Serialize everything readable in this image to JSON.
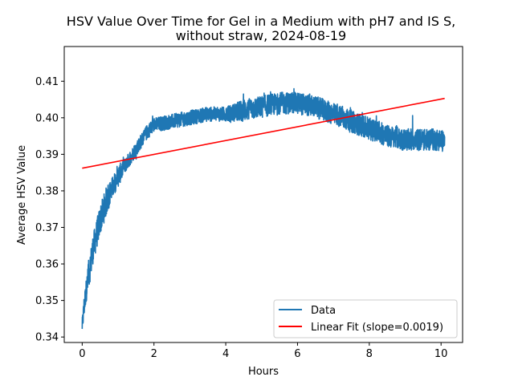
{
  "chart_data": {
    "type": "line",
    "title": "HSV Value Over Time for Gel in a Medium with pH7 and IS S,",
    "subtitle": "without straw, 2024-08-19",
    "xlabel": "Hours",
    "ylabel": "Average HSV Value",
    "xlim": [
      -0.5,
      10.6
    ],
    "ylim": [
      0.3385,
      0.4195
    ],
    "xticks": [
      0,
      2,
      4,
      6,
      8,
      10
    ],
    "yticks": [
      0.34,
      0.35,
      0.36,
      0.37,
      0.38,
      0.39,
      0.4,
      0.41
    ],
    "legend_position": "bottom-right",
    "grid": false,
    "series": [
      {
        "name": "Data",
        "color": "#1f77b4",
        "kind": "noisy-line",
        "x": [
          0.0,
          0.05,
          0.1,
          0.2,
          0.3,
          0.4,
          0.5,
          0.6,
          0.7,
          0.8,
          0.9,
          1.0,
          1.2,
          1.4,
          1.6,
          1.8,
          2.0,
          2.5,
          3.0,
          3.5,
          4.0,
          4.5,
          5.0,
          5.5,
          6.0,
          6.5,
          7.0,
          7.5,
          8.0,
          8.5,
          9.0,
          9.5,
          10.0,
          10.1
        ],
        "y": [
          0.343,
          0.348,
          0.352,
          0.358,
          0.364,
          0.368,
          0.372,
          0.375,
          0.378,
          0.38,
          0.382,
          0.384,
          0.387,
          0.39,
          0.393,
          0.396,
          0.398,
          0.399,
          0.4,
          0.401,
          0.401,
          0.402,
          0.403,
          0.404,
          0.404,
          0.403,
          0.401,
          0.399,
          0.397,
          0.395,
          0.394,
          0.394,
          0.394,
          0.393
        ],
        "noise_amplitude": [
          0.002,
          0.003,
          0.003,
          0.004,
          0.004,
          0.004,
          0.004,
          0.004,
          0.004,
          0.003,
          0.003,
          0.003,
          0.002,
          0.002,
          0.002,
          0.002,
          0.002,
          0.002,
          0.002,
          0.002,
          0.002,
          0.003,
          0.003,
          0.003,
          0.003,
          0.003,
          0.003,
          0.003,
          0.003,
          0.003,
          0.003,
          0.003,
          0.003,
          0.003
        ]
      },
      {
        "name": "Linear Fit (slope=0.0019)",
        "color": "#ff0000",
        "kind": "line",
        "x": [
          0.0,
          10.1
        ],
        "y": [
          0.3862,
          0.4053
        ]
      }
    ]
  }
}
